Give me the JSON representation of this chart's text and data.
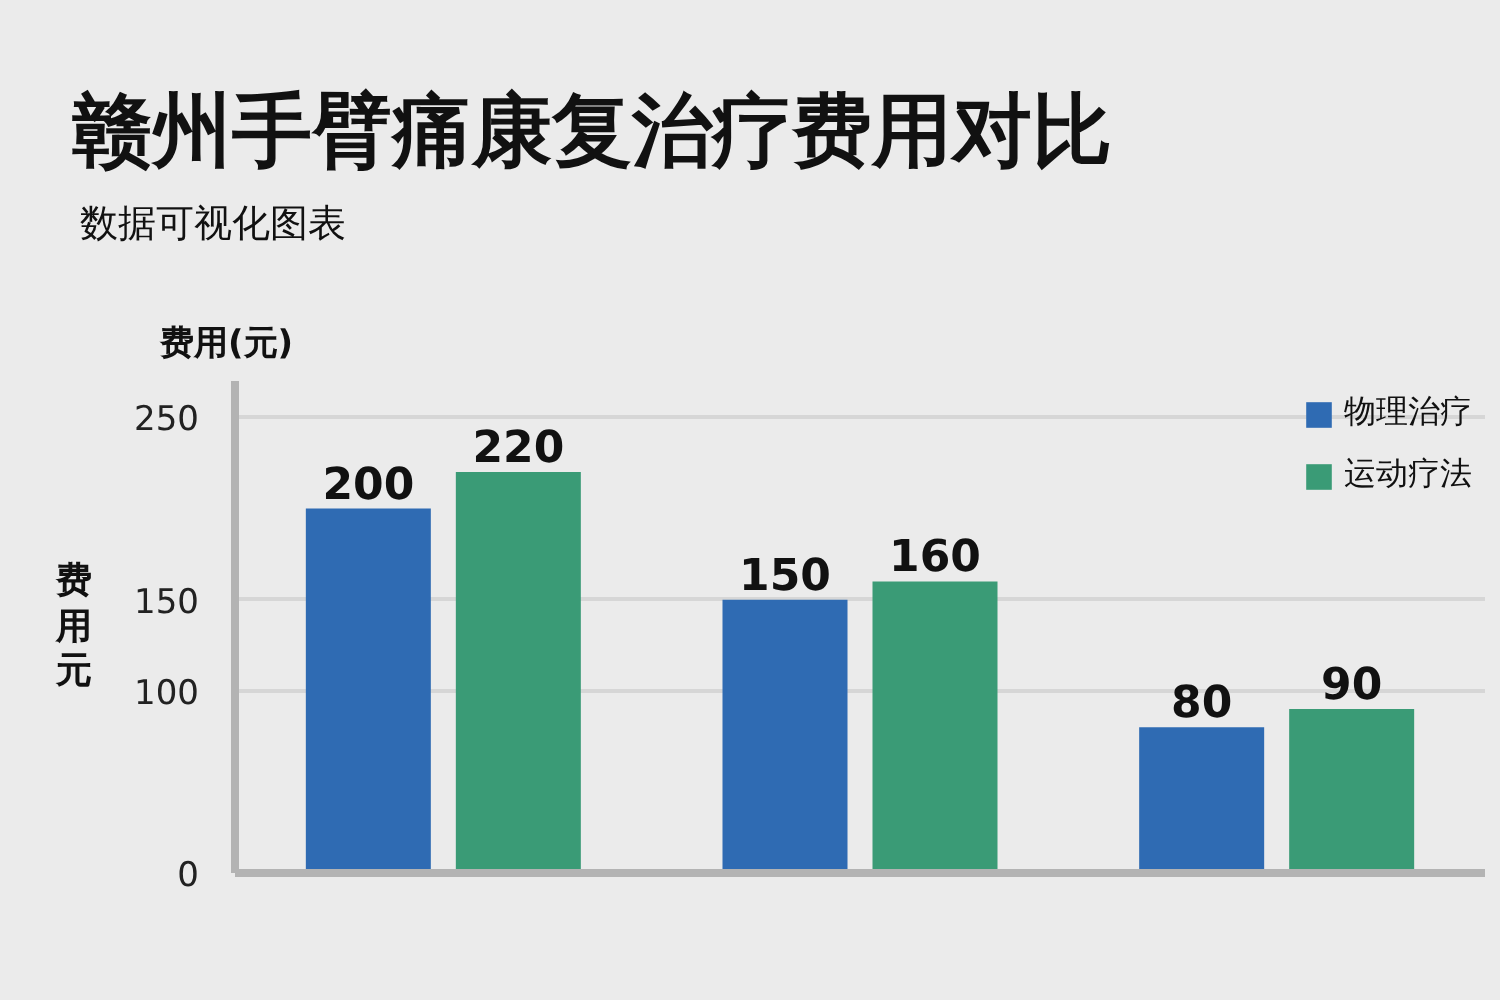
{
  "chart_data": {
    "type": "bar",
    "title": "赣州手臂痛康复治疗费用对比",
    "subtitle": "数据可视化图表",
    "ylabel": "费用(元)",
    "annotations": [
      "费用元"
    ],
    "categories": [
      null,
      null,
      null
    ],
    "series": [
      {
        "name": "物理治疗",
        "color": "#2f6bb3",
        "values": [
          200,
          150,
          80
        ]
      },
      {
        "name": "运动疗法",
        "color": "#3a9b76",
        "values": [
          220,
          160,
          90
        ]
      }
    ],
    "ylim": [
      0,
      270
    ],
    "yticks": [
      0,
      100,
      150,
      250
    ],
    "grid": "y",
    "legend": "top right",
    "data_labels": true
  }
}
